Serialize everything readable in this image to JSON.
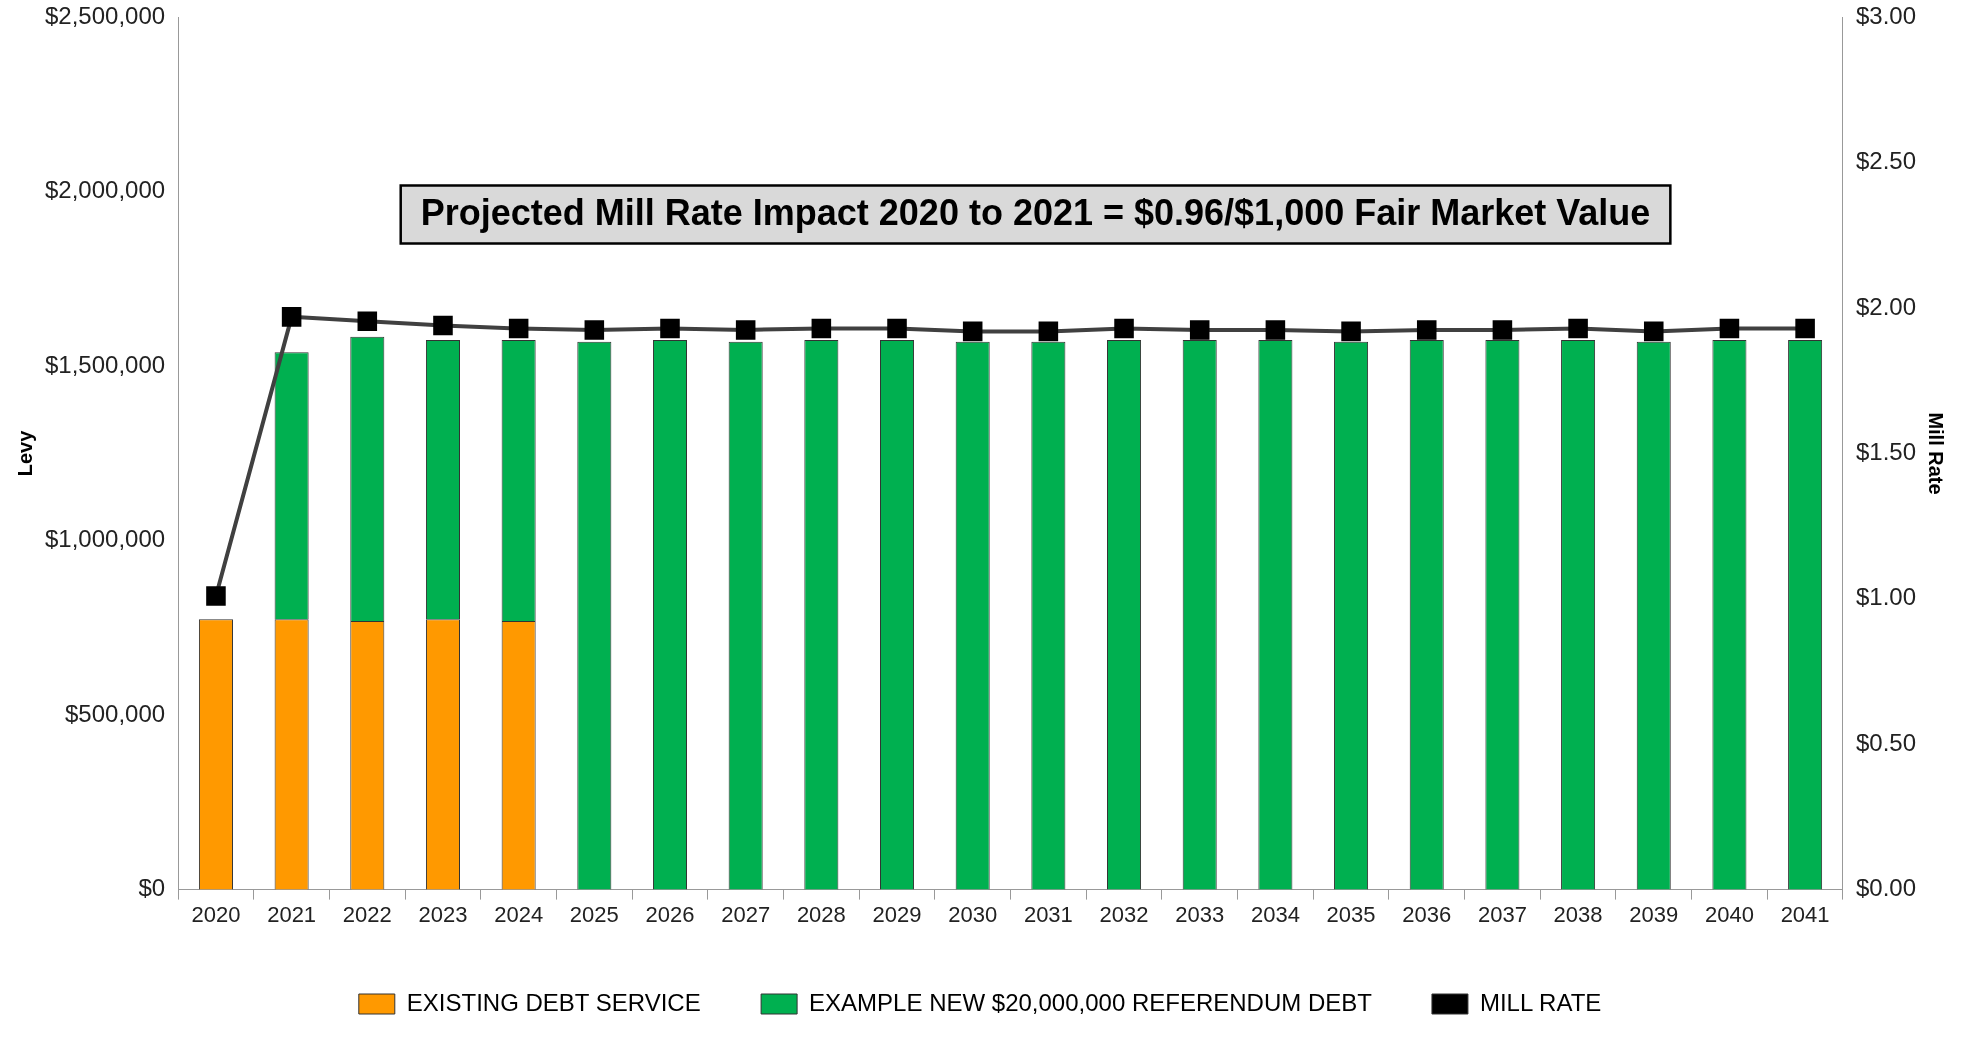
{
  "chart_data": {
    "type": "bar",
    "stacked": true,
    "ylabel": "Levy",
    "y2label": "Mill Rate",
    "annotations": [
      "Projected Mill Rate Impact 2020 to 2021 = $0.96/$1,000 Fair Market Value"
    ],
    "categories": [
      "2020",
      "2021",
      "2022",
      "2023",
      "2024",
      "2025",
      "2026",
      "2027",
      "2028",
      "2029",
      "2030",
      "2031",
      "2032",
      "2033",
      "2034",
      "2035",
      "2036",
      "2037",
      "2038",
      "2039",
      "2040",
      "2041"
    ],
    "series": [
      {
        "name": "EXISTING DEBT SERVICE",
        "color": "#ff9900",
        "values": [
          775000,
          775000,
          770000,
          775000,
          770000,
          null,
          null,
          null,
          null,
          null,
          null,
          null,
          null,
          null,
          null,
          null,
          null,
          null,
          null,
          null,
          null,
          null
        ]
      },
      {
        "name": "EXAMPLE NEW $20,000,000 REFERENDUM DEBT",
        "color": "#00b050",
        "values": [
          null,
          765000,
          815000,
          800000,
          805000,
          1570000,
          1575000,
          1570000,
          1575000,
          1575000,
          1570000,
          1570000,
          1575000,
          1575000,
          1575000,
          1570000,
          1575000,
          1575000,
          1575000,
          1570000,
          1575000,
          1575000
        ]
      },
      {
        "name": "MILL RATE",
        "type": "line",
        "axis": "y2",
        "color": "#000000",
        "marker": "square",
        "values": [
          1.01,
          1.97,
          1.955,
          1.94,
          1.93,
          1.925,
          1.93,
          1.925,
          1.93,
          1.93,
          1.92,
          1.92,
          1.93,
          1.925,
          1.925,
          1.92,
          1.925,
          1.925,
          1.93,
          1.92,
          1.93,
          1.93
        ]
      }
    ],
    "ylim": [
      0,
      2500000
    ],
    "yticks": [
      {
        "value": 0,
        "label": "$0"
      },
      {
        "value": 500000,
        "label": "$500,000"
      },
      {
        "value": 1000000,
        "label": "$1,000,000"
      },
      {
        "value": 1500000,
        "label": "$1,500,000"
      },
      {
        "value": 2000000,
        "label": "$2,000,000"
      },
      {
        "value": 2500000,
        "label": "$2,500,000"
      }
    ],
    "y2lim": [
      0,
      3
    ],
    "y2ticks": [
      {
        "value": 0,
        "label": "$0.00"
      },
      {
        "value": 0.5,
        "label": "$0.50"
      },
      {
        "value": 1,
        "label": "$1.00"
      },
      {
        "value": 1.5,
        "label": "$1.50"
      },
      {
        "value": 2,
        "label": "$2.00"
      },
      {
        "value": 2.5,
        "label": "$2.50"
      },
      {
        "value": 3,
        "label": "$3.00"
      }
    ],
    "grid": false,
    "legend": "bottom"
  }
}
